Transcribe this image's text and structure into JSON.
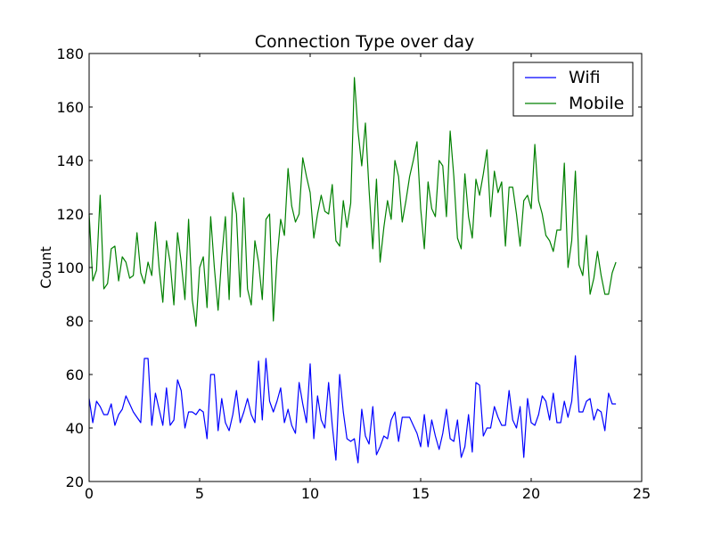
{
  "chart_data": {
    "type": "line",
    "title": "Connection Type over day",
    "xlabel": "",
    "ylabel": "Count",
    "xlim": [
      0,
      25
    ],
    "ylim": [
      20,
      180
    ],
    "xticks": [
      0,
      5,
      10,
      15,
      20,
      25
    ],
    "yticks": [
      20,
      40,
      60,
      80,
      100,
      120,
      140,
      160,
      180
    ],
    "grid": false,
    "legend_position": "top-right",
    "series": [
      {
        "name": "Wifi",
        "color": "#0000ff",
        "x": [
          0.0,
          0.167,
          0.333,
          0.5,
          0.667,
          0.833,
          1.0,
          1.167,
          1.333,
          1.5,
          1.667,
          1.833,
          2.0,
          2.167,
          2.333,
          2.5,
          2.667,
          2.833,
          3.0,
          3.167,
          3.333,
          3.5,
          3.667,
          3.833,
          4.0,
          4.167,
          4.333,
          4.5,
          4.667,
          4.833,
          5.0,
          5.167,
          5.333,
          5.5,
          5.667,
          5.833,
          6.0,
          6.167,
          6.333,
          6.5,
          6.667,
          6.833,
          7.0,
          7.167,
          7.333,
          7.5,
          7.667,
          7.833,
          8.0,
          8.167,
          8.333,
          8.5,
          8.667,
          8.833,
          9.0,
          9.167,
          9.333,
          9.5,
          9.667,
          9.833,
          10.0,
          10.167,
          10.333,
          10.5,
          10.667,
          10.833,
          11.0,
          11.167,
          11.333,
          11.5,
          11.667,
          11.833,
          12.0,
          12.167,
          12.333,
          12.5,
          12.667,
          12.833,
          13.0,
          13.167,
          13.333,
          13.5,
          13.667,
          13.833,
          14.0,
          14.167,
          14.333,
          14.5,
          14.667,
          14.833,
          15.0,
          15.167,
          15.333,
          15.5,
          15.667,
          15.833,
          16.0,
          16.167,
          16.333,
          16.5,
          16.667,
          16.833,
          17.0,
          17.167,
          17.333,
          17.5,
          17.667,
          17.833,
          18.0,
          18.167,
          18.333,
          18.5,
          18.667,
          18.833,
          19.0,
          19.167,
          19.333,
          19.5,
          19.667,
          19.833,
          20.0,
          20.167,
          20.333,
          20.5,
          20.667,
          20.833,
          21.0,
          21.167,
          21.333,
          21.5,
          21.667,
          21.833,
          22.0,
          22.167,
          22.333,
          22.5,
          22.667,
          22.833,
          23.0,
          23.167,
          23.333,
          23.5,
          23.667,
          23.833
        ],
        "values": [
          51,
          42,
          50,
          48,
          45,
          45,
          49,
          41,
          45,
          47,
          52,
          49,
          46,
          44,
          42,
          66,
          66,
          41,
          53,
          47,
          41,
          55,
          41,
          43,
          58,
          54,
          40,
          46,
          46,
          45,
          47,
          46,
          36,
          60,
          60,
          39,
          51,
          42,
          39,
          45,
          54,
          42,
          46,
          51,
          45,
          42,
          65,
          43,
          66,
          50,
          46,
          50,
          55,
          42,
          47,
          41,
          38,
          57,
          49,
          42,
          64,
          36,
          52,
          43,
          40,
          57,
          41,
          28,
          60,
          46,
          36,
          35,
          36,
          27,
          47,
          37,
          34,
          48,
          30,
          33,
          37,
          36,
          43,
          46,
          35,
          44,
          44,
          44,
          41,
          38,
          33,
          45,
          33,
          43,
          37,
          32,
          38,
          47,
          36,
          35,
          43,
          29,
          33,
          45,
          31,
          57,
          56,
          37,
          40,
          40,
          48,
          44,
          41,
          41,
          54,
          43,
          40,
          48,
          29,
          51,
          42,
          41,
          45,
          52,
          50,
          43,
          53,
          42,
          42,
          50,
          44,
          50,
          67,
          46,
          46,
          50,
          51,
          43,
          47,
          46,
          39,
          53,
          49,
          49
        ]
      },
      {
        "name": "Mobile",
        "color": "#008000",
        "x": [
          0.0,
          0.167,
          0.333,
          0.5,
          0.667,
          0.833,
          1.0,
          1.167,
          1.333,
          1.5,
          1.667,
          1.833,
          2.0,
          2.167,
          2.333,
          2.5,
          2.667,
          2.833,
          3.0,
          3.167,
          3.333,
          3.5,
          3.667,
          3.833,
          4.0,
          4.167,
          4.333,
          4.5,
          4.667,
          4.833,
          5.0,
          5.167,
          5.333,
          5.5,
          5.667,
          5.833,
          6.0,
          6.167,
          6.333,
          6.5,
          6.667,
          6.833,
          7.0,
          7.167,
          7.333,
          7.5,
          7.667,
          7.833,
          8.0,
          8.167,
          8.333,
          8.5,
          8.667,
          8.833,
          9.0,
          9.167,
          9.333,
          9.5,
          9.667,
          9.833,
          10.0,
          10.167,
          10.333,
          10.5,
          10.667,
          10.833,
          11.0,
          11.167,
          11.333,
          11.5,
          11.667,
          11.833,
          12.0,
          12.167,
          12.333,
          12.5,
          12.667,
          12.833,
          13.0,
          13.167,
          13.333,
          13.5,
          13.667,
          13.833,
          14.0,
          14.167,
          14.333,
          14.5,
          14.667,
          14.833,
          15.0,
          15.167,
          15.333,
          15.5,
          15.667,
          15.833,
          16.0,
          16.167,
          16.333,
          16.5,
          16.667,
          16.833,
          17.0,
          17.167,
          17.333,
          17.5,
          17.667,
          17.833,
          18.0,
          18.167,
          18.333,
          18.5,
          18.667,
          18.833,
          19.0,
          19.167,
          19.333,
          19.5,
          19.667,
          19.833,
          20.0,
          20.167,
          20.333,
          20.5,
          20.667,
          20.833,
          21.0,
          21.167,
          21.333,
          21.5,
          21.667,
          21.833,
          22.0,
          22.167,
          22.333,
          22.5,
          22.667,
          22.833,
          23.0,
          23.167,
          23.333,
          23.5,
          23.667,
          23.833
        ],
        "values": [
          120,
          95,
          99,
          127,
          92,
          94,
          107,
          108,
          95,
          104,
          102,
          96,
          97,
          113,
          98,
          94,
          102,
          97,
          117,
          100,
          87,
          110,
          102,
          86,
          113,
          102,
          88,
          118,
          88,
          78,
          100,
          104,
          85,
          119,
          100,
          84,
          104,
          119,
          88,
          128,
          120,
          89,
          126,
          92,
          86,
          110,
          102,
          88,
          118,
          120,
          80,
          103,
          118,
          112,
          137,
          123,
          117,
          120,
          141,
          134,
          128,
          111,
          120,
          127,
          121,
          120,
          131,
          110,
          108,
          125,
          115,
          124,
          171,
          151,
          138,
          154,
          129,
          107,
          133,
          102,
          115,
          125,
          118,
          140,
          134,
          117,
          125,
          134,
          140,
          147,
          122,
          107,
          132,
          122,
          119,
          140,
          138,
          119,
          151,
          134,
          111,
          107,
          135,
          119,
          111,
          133,
          127,
          135,
          144,
          119,
          136,
          128,
          132,
          108,
          130,
          130,
          120,
          108,
          125,
          127,
          122,
          146,
          125,
          120,
          112,
          110,
          106,
          114,
          114,
          139,
          100,
          110,
          136,
          101,
          97,
          112,
          90,
          96,
          106,
          97,
          90,
          90,
          98,
          102
        ]
      }
    ]
  }
}
